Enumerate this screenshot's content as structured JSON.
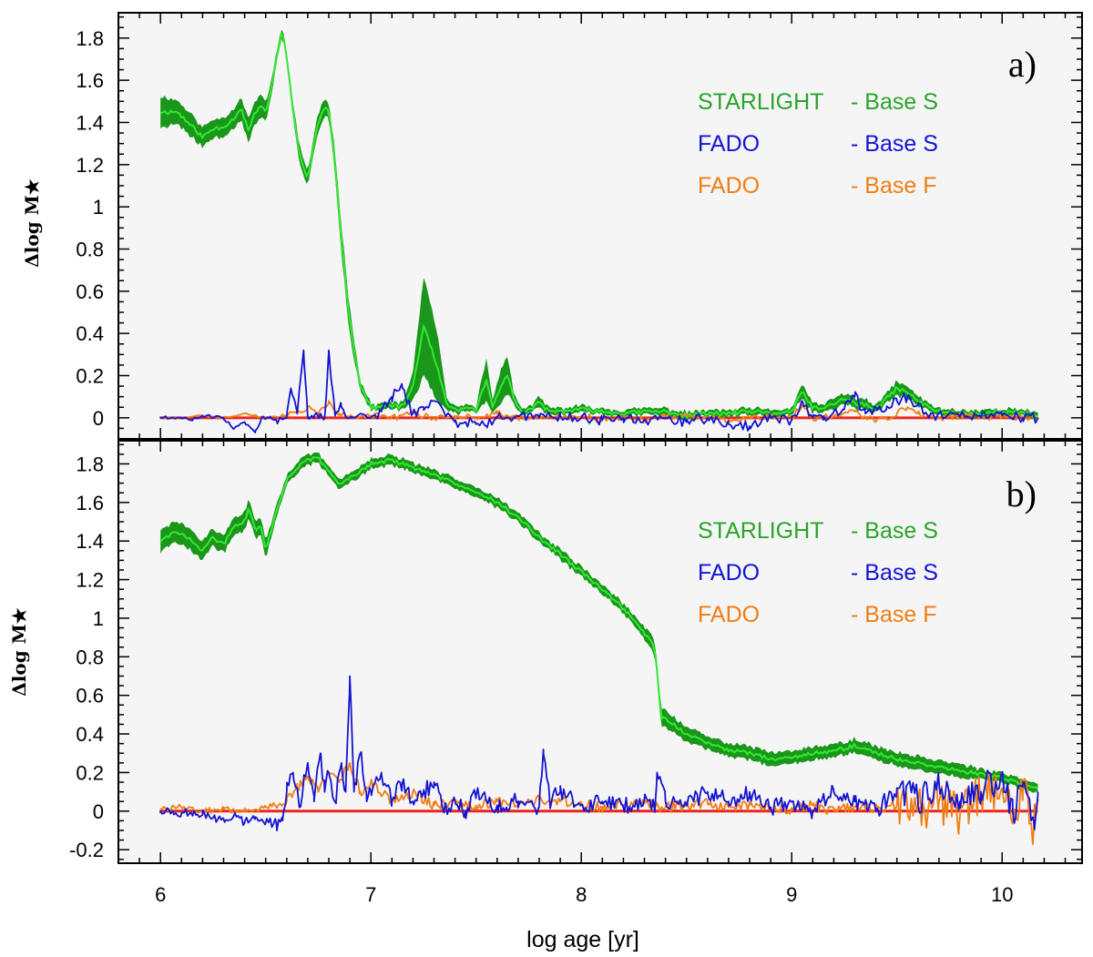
{
  "chart_data": [
    {
      "type": "line",
      "panel_label": "a)",
      "xlabel": "log age [yr]",
      "ylabel": "Δlog M★",
      "xlim": [
        5.8,
        10.38
      ],
      "ylim": [
        -0.1,
        1.92
      ],
      "xticks": [
        6,
        7,
        8,
        9,
        10
      ],
      "yticks": [
        0,
        0.2,
        0.4,
        0.6,
        0.8,
        1,
        1.2,
        1.4,
        1.6,
        1.8
      ],
      "ytick_labels": [
        "0",
        "0.2",
        "0.4",
        "0.6",
        "0.8",
        "1",
        "1.2",
        "1.4",
        "1.6",
        "1.8"
      ],
      "reference_line": {
        "y": 0,
        "color": "#e8261e"
      },
      "legend": {
        "position": "top-right",
        "entries": [
          {
            "name": "STARLIGHT",
            "base": "- Base S",
            "color": "#2aa52a"
          },
          {
            "name": "FADO",
            "base": "- Base S",
            "color": "#1414d2"
          },
          {
            "name": "FADO",
            "base": "- Base F",
            "color": "#f07d14"
          }
        ]
      },
      "series": [
        {
          "name": "STARLIGHT - Base S",
          "color": "#33e833",
          "band_color": "#1a961a",
          "x": [
            6.0,
            6.08,
            6.15,
            6.2,
            6.25,
            6.3,
            6.35,
            6.38,
            6.42,
            6.45,
            6.48,
            6.5,
            6.53,
            6.56,
            6.58,
            6.6,
            6.63,
            6.66,
            6.7,
            6.72,
            6.75,
            6.78,
            6.8,
            6.83,
            6.86,
            6.9,
            6.95,
            7.0,
            7.05,
            7.1,
            7.15,
            7.2,
            7.25,
            7.28,
            7.32,
            7.36,
            7.4,
            7.45,
            7.5,
            7.55,
            7.58,
            7.62,
            7.65,
            7.68,
            7.72,
            7.76,
            7.8,
            7.85,
            7.9,
            8.0,
            8.1,
            8.2,
            8.3,
            8.4,
            8.5,
            8.6,
            8.7,
            8.8,
            8.9,
            9.0,
            9.05,
            9.1,
            9.15,
            9.2,
            9.25,
            9.3,
            9.35,
            9.4,
            9.45,
            9.5,
            9.55,
            9.6,
            9.65,
            9.7,
            9.8,
            9.9,
            10.0,
            10.1,
            10.17
          ],
          "values": [
            1.45,
            1.45,
            1.38,
            1.33,
            1.37,
            1.38,
            1.42,
            1.47,
            1.36,
            1.45,
            1.47,
            1.45,
            1.58,
            1.75,
            1.83,
            1.72,
            1.45,
            1.25,
            1.13,
            1.25,
            1.4,
            1.47,
            1.45,
            1.2,
            0.85,
            0.45,
            0.15,
            0.05,
            0.05,
            0.06,
            0.05,
            0.15,
            0.43,
            0.35,
            0.22,
            0.06,
            0.04,
            0.04,
            0.04,
            0.18,
            0.05,
            0.16,
            0.21,
            0.08,
            0.03,
            0.04,
            0.07,
            0.03,
            0.03,
            0.04,
            0.03,
            0.02,
            0.03,
            0.03,
            0.01,
            0.02,
            0.02,
            0.03,
            0.02,
            0.03,
            0.12,
            0.05,
            0.04,
            0.07,
            0.09,
            0.07,
            0.06,
            0.04,
            0.09,
            0.14,
            0.12,
            0.08,
            0.05,
            0.03,
            0.02,
            0.02,
            0.03,
            0.02,
            0.01
          ],
          "band": [
            0.07,
            0.05,
            0.05,
            0.04,
            0.04,
            0.04,
            0.04,
            0.05,
            0.05,
            0.05,
            0.05,
            0.04,
            0.03,
            0.02,
            0.02,
            0.02,
            0.03,
            0.04,
            0.03,
            0.03,
            0.04,
            0.04,
            0.03,
            0.05,
            0.06,
            0.06,
            0.02,
            0.01,
            0.01,
            0.01,
            0.01,
            0.06,
            0.23,
            0.2,
            0.15,
            0.02,
            0.01,
            0.01,
            0.01,
            0.1,
            0.02,
            0.08,
            0.08,
            0.02,
            0.01,
            0.01,
            0.02,
            0.01,
            0.01,
            0.01,
            0.01,
            0.01,
            0.01,
            0.01,
            0.01,
            0.01,
            0.01,
            0.01,
            0.01,
            0.01,
            0.03,
            0.02,
            0.01,
            0.02,
            0.02,
            0.02,
            0.02,
            0.01,
            0.02,
            0.03,
            0.02,
            0.02,
            0.01,
            0.01,
            0.01,
            0.01,
            0.01,
            0.01,
            0.01
          ]
        },
        {
          "name": "FADO - Base S",
          "color": "#1414d2",
          "x": [
            6.0,
            6.1,
            6.15,
            6.2,
            6.3,
            6.35,
            6.4,
            6.45,
            6.48,
            6.52,
            6.55,
            6.6,
            6.62,
            6.65,
            6.68,
            6.7,
            6.73,
            6.76,
            6.78,
            6.8,
            6.83,
            6.86,
            6.9,
            6.95,
            7.0,
            7.05,
            7.1,
            7.15,
            7.2,
            7.25,
            7.3,
            7.35,
            7.4,
            7.45,
            7.5,
            7.55,
            7.6,
            7.7,
            7.8,
            7.9,
            8.0,
            8.1,
            8.2,
            8.3,
            8.4,
            8.5,
            8.6,
            8.7,
            8.8,
            8.9,
            9.0,
            9.05,
            9.1,
            9.15,
            9.2,
            9.25,
            9.3,
            9.35,
            9.4,
            9.45,
            9.5,
            9.55,
            9.6,
            9.65,
            9.7,
            9.8,
            9.9,
            10.0,
            10.1,
            10.17
          ],
          "values": [
            0.0,
            0.0,
            -0.01,
            0.01,
            0.0,
            -0.05,
            -0.02,
            -0.07,
            0.0,
            0.0,
            -0.01,
            0.0,
            0.14,
            0.02,
            0.32,
            0.0,
            0.01,
            0.02,
            0.0,
            0.32,
            0.01,
            0.05,
            0.0,
            0.02,
            0.0,
            0.03,
            0.1,
            0.14,
            0.02,
            0.05,
            0.08,
            0.02,
            -0.02,
            -0.02,
            -0.03,
            -0.04,
            0.0,
            0.01,
            0.0,
            0.01,
            0.0,
            -0.01,
            0.0,
            -0.01,
            0.0,
            -0.02,
            0.0,
            -0.03,
            -0.04,
            0.0,
            -0.01,
            0.08,
            0.0,
            -0.01,
            0.03,
            0.04,
            0.1,
            0.02,
            0.05,
            0.04,
            0.08,
            0.1,
            0.06,
            0.0,
            0.02,
            0.01,
            0.0,
            0.01,
            0.0,
            0.0
          ]
        },
        {
          "name": "FADO - Base F",
          "color": "#f07d14",
          "x": [
            6.0,
            6.1,
            6.2,
            6.3,
            6.4,
            6.5,
            6.6,
            6.7,
            6.75,
            6.8,
            6.85,
            6.9,
            7.0,
            7.1,
            7.2,
            7.3,
            7.4,
            7.5,
            7.6,
            7.7,
            7.8,
            7.9,
            8.0,
            8.1,
            8.2,
            8.3,
            8.4,
            8.5,
            8.6,
            8.7,
            8.8,
            8.9,
            9.0,
            9.05,
            9.1,
            9.2,
            9.3,
            9.4,
            9.45,
            9.5,
            9.55,
            9.6,
            9.7,
            9.8,
            9.9,
            10.0,
            10.1,
            10.17
          ],
          "values": [
            0.0,
            0.0,
            0.01,
            0.0,
            0.02,
            0.0,
            0.01,
            0.05,
            0.01,
            0.08,
            0.02,
            0.0,
            0.01,
            0.0,
            0.02,
            0.0,
            0.01,
            0.0,
            0.02,
            0.0,
            0.01,
            0.0,
            0.01,
            -0.01,
            0.0,
            -0.01,
            0.0,
            0.01,
            0.0,
            -0.01,
            0.0,
            0.01,
            0.0,
            0.06,
            0.0,
            0.01,
            0.03,
            -0.02,
            0.0,
            0.02,
            0.05,
            0.02,
            0.0,
            0.01,
            0.0,
            0.01,
            0.0,
            0.0
          ]
        }
      ]
    },
    {
      "type": "line",
      "panel_label": "b)",
      "xlabel": "log age [yr]",
      "ylabel": "Δlog M★",
      "xlim": [
        5.8,
        10.38
      ],
      "ylim": [
        -0.27,
        1.92
      ],
      "xticks": [
        6,
        7,
        8,
        9,
        10
      ],
      "xtick_labels": [
        "6",
        "7",
        "8",
        "9",
        "10"
      ],
      "yticks": [
        -0.2,
        0,
        0.2,
        0.4,
        0.6,
        0.8,
        1,
        1.2,
        1.4,
        1.6,
        1.8
      ],
      "ytick_labels": [
        "-0.2",
        "0",
        "0.2",
        "0.4",
        "0.6",
        "0.8",
        "1",
        "1.2",
        "1.4",
        "1.6",
        "1.8"
      ],
      "reference_line": {
        "y": 0,
        "color": "#e8261e"
      },
      "legend": {
        "position": "top-right",
        "entries": [
          {
            "name": "STARLIGHT",
            "base": "- Base S",
            "color": "#2aa52a"
          },
          {
            "name": "FADO",
            "base": "- Base S",
            "color": "#1414d2"
          },
          {
            "name": "FADO",
            "base": "- Base F",
            "color": "#f07d14"
          }
        ]
      },
      "series": [
        {
          "name": "STARLIGHT - Base S",
          "color": "#33e833",
          "band_color": "#1a961a",
          "x": [
            6.0,
            6.08,
            6.15,
            6.2,
            6.25,
            6.3,
            6.35,
            6.4,
            6.42,
            6.45,
            6.48,
            6.5,
            6.55,
            6.6,
            6.65,
            6.7,
            6.75,
            6.8,
            6.85,
            6.9,
            7.0,
            7.1,
            7.2,
            7.3,
            7.4,
            7.5,
            7.6,
            7.7,
            7.8,
            7.9,
            8.0,
            8.1,
            8.2,
            8.25,
            8.3,
            8.35,
            8.37,
            8.38,
            8.4,
            8.5,
            8.6,
            8.7,
            8.8,
            8.9,
            9.0,
            9.1,
            9.2,
            9.3,
            9.4,
            9.5,
            9.6,
            9.7,
            9.8,
            9.9,
            10.0,
            10.1,
            10.17
          ],
          "values": [
            1.4,
            1.45,
            1.4,
            1.35,
            1.42,
            1.38,
            1.48,
            1.5,
            1.58,
            1.45,
            1.48,
            1.35,
            1.55,
            1.72,
            1.78,
            1.82,
            1.83,
            1.76,
            1.69,
            1.73,
            1.8,
            1.82,
            1.78,
            1.74,
            1.7,
            1.66,
            1.6,
            1.52,
            1.42,
            1.33,
            1.24,
            1.15,
            1.05,
            0.99,
            0.92,
            0.85,
            0.6,
            0.48,
            0.48,
            0.4,
            0.35,
            0.32,
            0.3,
            0.27,
            0.28,
            0.3,
            0.31,
            0.34,
            0.3,
            0.27,
            0.25,
            0.23,
            0.21,
            0.19,
            0.17,
            0.14,
            0.12
          ],
          "band": [
            0.05,
            0.05,
            0.05,
            0.04,
            0.04,
            0.04,
            0.04,
            0.04,
            0.04,
            0.04,
            0.04,
            0.04,
            0.03,
            0.02,
            0.02,
            0.02,
            0.02,
            0.02,
            0.02,
            0.02,
            0.02,
            0.02,
            0.02,
            0.02,
            0.02,
            0.02,
            0.02,
            0.02,
            0.02,
            0.02,
            0.02,
            0.02,
            0.02,
            0.02,
            0.03,
            0.03,
            0.04,
            0.04,
            0.04,
            0.03,
            0.03,
            0.03,
            0.03,
            0.03,
            0.03,
            0.03,
            0.03,
            0.03,
            0.03,
            0.03,
            0.03,
            0.03,
            0.03,
            0.02,
            0.02,
            0.02,
            0.02
          ]
        },
        {
          "name": "FADO - Base S",
          "color": "#1414d2",
          "x": [
            6.0,
            6.1,
            6.2,
            6.3,
            6.35,
            6.4,
            6.45,
            6.5,
            6.55,
            6.58,
            6.6,
            6.63,
            6.66,
            6.68,
            6.7,
            6.73,
            6.76,
            6.78,
            6.8,
            6.83,
            6.86,
            6.88,
            6.9,
            6.92,
            6.95,
            6.98,
            7.0,
            7.05,
            7.1,
            7.15,
            7.2,
            7.25,
            7.3,
            7.35,
            7.4,
            7.45,
            7.5,
            7.6,
            7.7,
            7.8,
            7.82,
            7.85,
            7.9,
            8.0,
            8.1,
            8.2,
            8.3,
            8.35,
            8.36,
            8.4,
            8.5,
            8.6,
            8.7,
            8.8,
            8.9,
            9.0,
            9.1,
            9.2,
            9.3,
            9.4,
            9.5,
            9.6,
            9.7,
            9.8,
            9.9,
            10.0,
            10.05,
            10.1,
            10.15,
            10.17
          ],
          "values": [
            0.0,
            -0.01,
            -0.02,
            -0.04,
            -0.02,
            -0.06,
            -0.03,
            -0.06,
            -0.06,
            -0.05,
            0.1,
            0.2,
            0.02,
            0.15,
            0.25,
            0.05,
            0.3,
            0.1,
            0.2,
            0.05,
            0.25,
            0.1,
            0.7,
            0.1,
            0.3,
            0.05,
            0.1,
            0.2,
            0.05,
            0.15,
            0.05,
            0.1,
            0.15,
            0.02,
            0.05,
            0.0,
            0.08,
            0.03,
            0.05,
            0.02,
            0.32,
            0.05,
            0.1,
            0.03,
            0.05,
            0.02,
            0.06,
            0.02,
            0.2,
            0.05,
            0.03,
            0.1,
            0.05,
            0.1,
            0.02,
            0.05,
            0.0,
            0.1,
            0.05,
            0.0,
            0.12,
            0.05,
            0.15,
            0.05,
            0.1,
            0.2,
            0.0,
            0.15,
            -0.05,
            0.1
          ]
        },
        {
          "name": "FADO - Base F",
          "color": "#f07d14",
          "x": [
            6.0,
            6.1,
            6.2,
            6.3,
            6.4,
            6.5,
            6.6,
            6.65,
            6.7,
            6.75,
            6.8,
            6.85,
            6.9,
            6.95,
            7.0,
            7.1,
            7.2,
            7.3,
            7.4,
            7.5,
            7.6,
            7.7,
            7.8,
            7.9,
            8.0,
            8.1,
            8.2,
            8.3,
            8.4,
            8.5,
            8.6,
            8.7,
            8.8,
            8.9,
            9.0,
            9.1,
            9.2,
            9.3,
            9.4,
            9.5,
            9.6,
            9.7,
            9.8,
            9.9,
            10.0,
            10.05,
            10.1,
            10.15,
            10.17
          ],
          "values": [
            0.01,
            0.02,
            0.0,
            0.01,
            0.0,
            0.02,
            0.05,
            0.12,
            0.18,
            0.1,
            0.2,
            0.15,
            0.25,
            0.1,
            0.15,
            0.05,
            0.1,
            0.03,
            0.05,
            0.03,
            0.05,
            0.04,
            0.06,
            0.05,
            0.04,
            0.02,
            0.03,
            0.04,
            0.02,
            0.03,
            0.04,
            0.02,
            0.03,
            0.02,
            0.01,
            0.03,
            0.0,
            0.02,
            0.01,
            0.03,
            0.0,
            0.05,
            -0.02,
            0.1,
            0.12,
            -0.05,
            0.15,
            -0.1,
            0.05
          ]
        }
      ]
    }
  ]
}
